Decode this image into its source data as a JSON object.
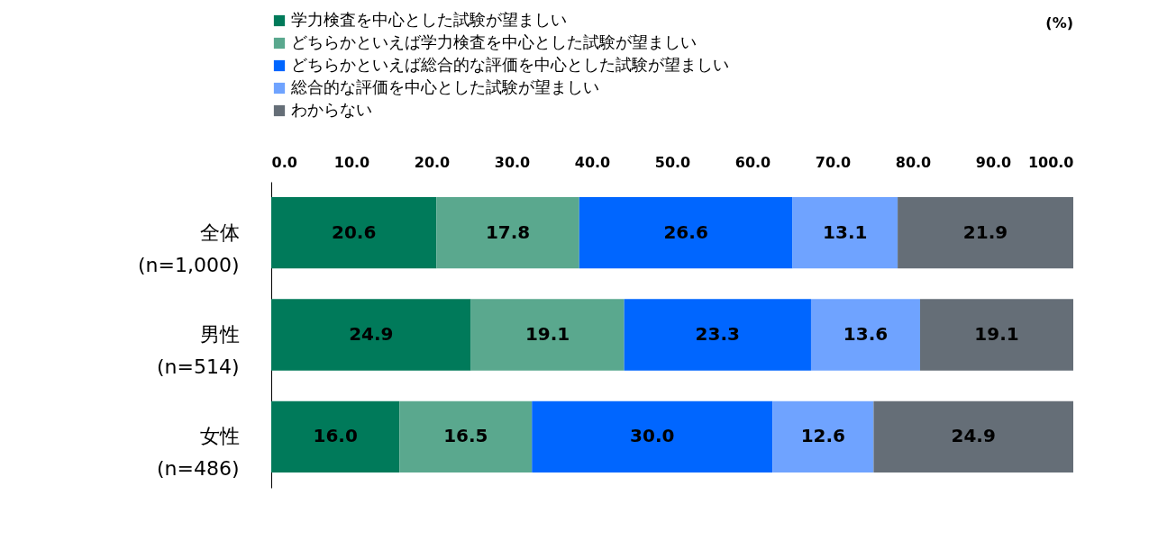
{
  "chart_data": {
    "type": "bar",
    "orientation": "horizontal",
    "stacked": true,
    "grid": false,
    "legend": "top",
    "annotations": [
      "(%)"
    ],
    "categories": [
      "全体\n(n=1,000)",
      "男性\n(n=514)",
      "女性\n(n=486)"
    ],
    "series": [
      {
        "name": "学力検査を中心とした試験が望ましい",
        "color": "#007a5a",
        "values": [
          20.6,
          24.9,
          16.0
        ],
        "value_labels": [
          "20.6",
          "24.9",
          "16.0"
        ]
      },
      {
        "name": "どちらかといえば学力検査を中心とした試験が望ましい",
        "color": "#5aa88e",
        "values": [
          17.8,
          19.1,
          16.5
        ],
        "value_labels": [
          "17.8",
          "19.1",
          "16.5"
        ]
      },
      {
        "name": "どちらかといえば総合的な評価を中心とした試験が望ましい",
        "color": "#0066ff",
        "values": [
          26.6,
          23.3,
          30.0
        ],
        "value_labels": [
          "26.6",
          "23.3",
          "30.0"
        ]
      },
      {
        "name": "総合的な評価を中心とした試験が望ましい",
        "color": "#6fa3ff",
        "values": [
          13.1,
          13.6,
          12.6
        ],
        "value_labels": [
          "13.1",
          "13.6",
          "12.6"
        ]
      },
      {
        "name": "わからない",
        "color": "#656e77",
        "values": [
          21.9,
          19.1,
          24.9
        ],
        "value_labels": [
          "21.9",
          "19.1",
          "24.9"
        ]
      }
    ],
    "xlim": [
      0,
      100
    ],
    "xticks": [
      {
        "value": 0,
        "label": "0.0"
      },
      {
        "value": 10,
        "label": "10.0"
      },
      {
        "value": 20,
        "label": "20.0"
      },
      {
        "value": 30,
        "label": "30.0"
      },
      {
        "value": 40,
        "label": "40.0"
      },
      {
        "value": 50,
        "label": "50.0"
      },
      {
        "value": 60,
        "label": "60.0"
      },
      {
        "value": 70,
        "label": "70.0"
      },
      {
        "value": 80,
        "label": "80.0"
      },
      {
        "value": 90,
        "label": "90.0"
      },
      {
        "value": 100,
        "label": "100.0"
      }
    ]
  }
}
